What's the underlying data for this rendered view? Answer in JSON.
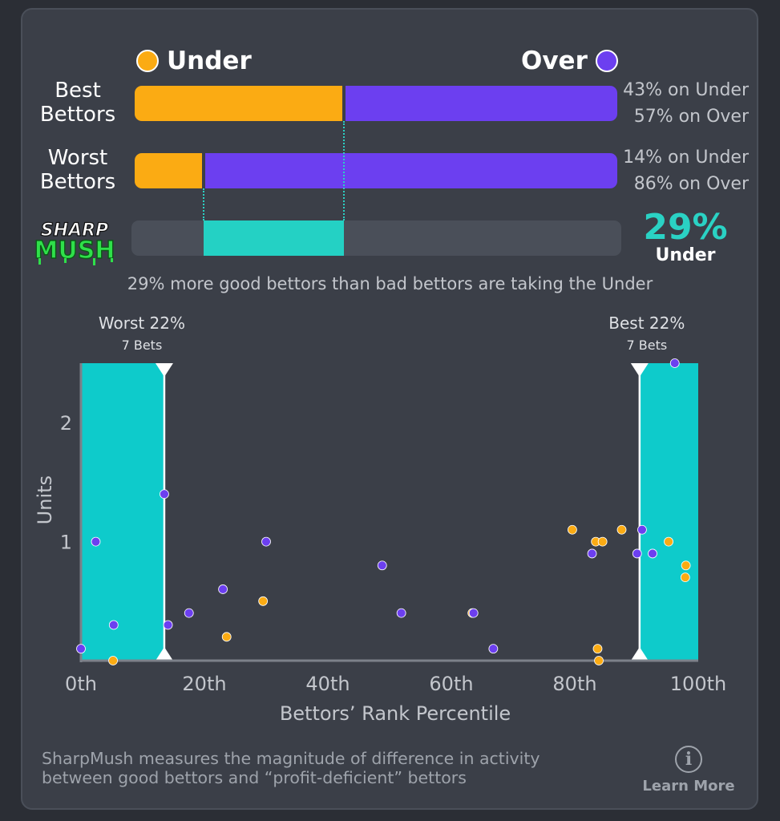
{
  "legend": {
    "under_label": "Under",
    "over_label": "Over",
    "under_color": "#fbab13",
    "over_color": "#6c3ff0"
  },
  "rows": [
    {
      "label_line1": "Best",
      "label_line2": "Bettors",
      "under_pct": 43,
      "over_pct": 57,
      "under_text": "43% on Under",
      "over_text": "57% on Over"
    },
    {
      "label_line1": "Worst",
      "label_line2": "Bettors",
      "under_pct": 14,
      "over_pct": 86,
      "under_text": "14% on Under",
      "over_text": "86% on Over"
    }
  ],
  "sharpmush": {
    "logo_line1": "SHARP",
    "logo_line2": "MUSH",
    "value_text": "29%",
    "side": "Under",
    "value_pct": 29,
    "color": "#2ad2c4"
  },
  "summary": "29% more good bettors than bad bettors are taking the Under",
  "chart_data": {
    "type": "scatter",
    "xlabel": "Bettors’ Rank Percentile",
    "ylabel": "Units",
    "x_ticks": [
      "0th",
      "20th",
      "40th",
      "60th",
      "80th",
      "100th"
    ],
    "y_ticks": [
      "1",
      "2"
    ],
    "xlim": [
      0,
      100
    ],
    "ylim": [
      0,
      2.5
    ],
    "highlight_regions": [
      {
        "label": "Worst 22%",
        "sublabel": "7 Bets",
        "x_range": [
          0,
          13.5
        ]
      },
      {
        "label": "Best 22%",
        "sublabel": "7 Bets",
        "x_range": [
          90.5,
          100
        ]
      }
    ],
    "series": [
      {
        "name": "Under",
        "color": "#fbab13",
        "points": [
          [
            5.2,
            0.0
          ],
          [
            23.6,
            0.2
          ],
          [
            29.5,
            0.5
          ],
          [
            63.4,
            0.4
          ],
          [
            79.6,
            1.1
          ],
          [
            83.4,
            1.0
          ],
          [
            84.5,
            1.0
          ],
          [
            87.6,
            1.1
          ],
          [
            83.7,
            0.1
          ],
          [
            83.9,
            0.0
          ],
          [
            95.2,
            1.0
          ],
          [
            98.0,
            0.8
          ],
          [
            97.9,
            0.7
          ]
        ]
      },
      {
        "name": "Over",
        "color": "#6c3ff0",
        "points": [
          [
            0.0,
            0.1
          ],
          [
            2.4,
            1.0
          ],
          [
            5.3,
            0.3
          ],
          [
            13.5,
            1.4
          ],
          [
            14.1,
            0.3
          ],
          [
            17.5,
            0.4
          ],
          [
            23.0,
            0.6
          ],
          [
            30.0,
            1.0
          ],
          [
            48.8,
            0.8
          ],
          [
            51.9,
            0.4
          ],
          [
            63.6,
            0.4
          ],
          [
            66.8,
            0.1
          ],
          [
            82.8,
            0.9
          ],
          [
            90.1,
            0.9
          ],
          [
            90.9,
            1.1
          ],
          [
            92.6,
            0.9
          ],
          [
            96.2,
            2.5
          ]
        ]
      }
    ]
  },
  "footer": {
    "line1": "SharpMush measures the magnitude of difference in activity",
    "line2": "between good bettors and “profit-deficient” bettors",
    "learn_more": "Learn More",
    "info_glyph": "i"
  }
}
